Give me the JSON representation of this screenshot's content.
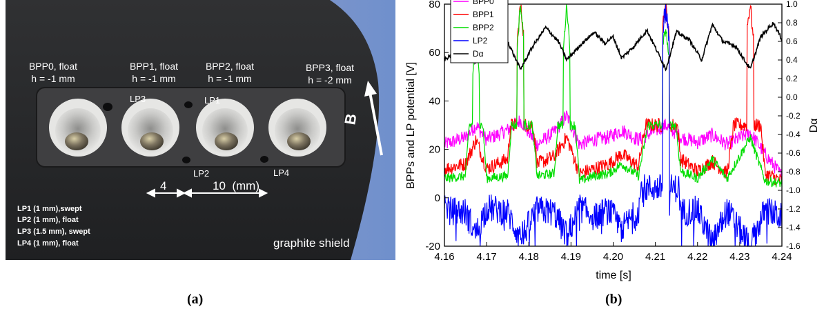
{
  "panel_a": {
    "caption": "(a)",
    "pin_labels": [
      {
        "name": "BPP0, float",
        "h": "h = -1 mm"
      },
      {
        "name": "BPP1, float",
        "h": "h = -1 mm"
      },
      {
        "name": "BPP2, float",
        "h": "h = -1 mm"
      },
      {
        "name": "BPP3, float",
        "h": "h = -2 mm"
      }
    ],
    "lp_labels": [
      "LP3",
      "LP1",
      "LP2",
      "LP4"
    ],
    "field_label": "B",
    "dim_small": "4",
    "dim_large": "10  (mm)",
    "legend_lines": [
      "LP1 (1 mm),swept",
      "LP2 (1 mm), float",
      "LP3 (1.5 mm), swept",
      "LP4 (1 mm), float"
    ],
    "shield_label": "graphite shield",
    "colors": {
      "shield": "#2b2b2d",
      "sky": "#7a92c4",
      "plate": "#3a3a3c",
      "cup": "#d8d8d6"
    }
  },
  "panel_b": {
    "caption": "(b)"
  },
  "chart_data": {
    "type": "line",
    "xlabel": "time [s]",
    "ylabel": "BPPs and LP potential [V]",
    "y2label": "Dα",
    "xlim": [
      4.16,
      4.24
    ],
    "ylim": [
      -20,
      80
    ],
    "y2lim": [
      -1.6,
      1.0
    ],
    "x_ticks": [
      "4.16",
      "4.17",
      "4.18",
      "4.19",
      "4.20",
      "4.21",
      "4.22",
      "4.23",
      "4.24"
    ],
    "y_ticks": [
      "-20",
      "0",
      "20",
      "40",
      "60",
      "80"
    ],
    "y2_ticks": [
      "-1.6",
      "-1.4",
      "-1.2",
      "-1.0",
      "-0.8",
      "-0.6",
      "-0.4",
      "-0.2",
      "0.0",
      "0.2",
      "0.4",
      "0.6",
      "0.8",
      "1.0"
    ],
    "legend_position": "top-left",
    "grid": false,
    "elm_times": [
      4.1675,
      4.178,
      4.189,
      4.1955,
      4.202,
      4.2125,
      4.2235,
      4.2325
    ],
    "series": [
      {
        "name": "BPP0",
        "color": "#ff00ff",
        "axis": "left",
        "x": [
          4.16,
          4.165,
          4.1675,
          4.17,
          4.175,
          4.178,
          4.182,
          4.186,
          4.189,
          4.192,
          4.1955,
          4.199,
          4.202,
          4.206,
          4.2125,
          4.216,
          4.22,
          4.2235,
          4.227,
          4.2325,
          4.236,
          4.24
        ],
        "y": [
          22,
          25,
          30,
          24,
          28,
          32,
          22,
          27,
          34,
          22,
          24,
          25,
          28,
          24,
          30,
          25,
          23,
          26,
          22,
          27,
          18,
          9
        ]
      },
      {
        "name": "BPP1",
        "color": "#ff0000",
        "axis": "left",
        "x": [
          4.16,
          4.165,
          4.1675,
          4.17,
          4.175,
          4.178,
          4.182,
          4.186,
          4.189,
          4.192,
          4.1955,
          4.199,
          4.202,
          4.206,
          4.2125,
          4.216,
          4.22,
          4.2235,
          4.227,
          4.2325,
          4.236,
          4.24
        ],
        "y": [
          12,
          14,
          24,
          12,
          16,
          80,
          14,
          17,
          25,
          10,
          12,
          14,
          18,
          13,
          80,
          16,
          11,
          15,
          10,
          80,
          10,
          7
        ]
      },
      {
        "name": "BPP2",
        "color": "#00dd00",
        "axis": "left",
        "x": [
          4.16,
          4.165,
          4.1675,
          4.17,
          4.175,
          4.178,
          4.182,
          4.186,
          4.189,
          4.192,
          4.1955,
          4.199,
          4.202,
          4.206,
          4.2125,
          4.216,
          4.22,
          4.2235,
          4.227,
          4.2325,
          4.236,
          4.24
        ],
        "y": [
          8,
          9,
          70,
          8,
          9,
          80,
          9,
          10,
          80,
          7,
          9,
          10,
          14,
          9,
          70,
          11,
          8,
          16,
          8,
          25,
          7,
          6
        ]
      },
      {
        "name": "LP2",
        "color": "#0000ff",
        "axis": "left",
        "x": [
          4.16,
          4.165,
          4.1675,
          4.17,
          4.175,
          4.178,
          4.182,
          4.186,
          4.189,
          4.192,
          4.1955,
          4.199,
          4.202,
          4.206,
          4.2125,
          4.216,
          4.22,
          4.2235,
          4.227,
          4.2325,
          4.236,
          4.24
        ],
        "y": [
          -5,
          -6,
          -15,
          -4,
          -6,
          -17,
          -5,
          -6,
          -16,
          -4,
          -8,
          -5,
          -13,
          -5,
          80,
          -6,
          -5,
          -19,
          -5,
          -20,
          -5,
          -8
        ]
      },
      {
        "name": "Dα",
        "color": "#000000",
        "axis": "right",
        "x": [
          4.16,
          4.163,
          4.1675,
          4.17,
          4.174,
          4.178,
          4.181,
          4.184,
          4.187,
          4.189,
          4.192,
          4.1955,
          4.198,
          4.2,
          4.202,
          4.205,
          4.208,
          4.2125,
          4.215,
          4.218,
          4.221,
          4.2235,
          4.226,
          4.229,
          4.2325,
          4.235,
          4.238,
          4.24
        ],
        "y": [
          0.4,
          0.5,
          0.38,
          0.55,
          0.7,
          0.3,
          0.55,
          0.75,
          0.6,
          0.4,
          0.55,
          0.7,
          0.58,
          0.65,
          0.42,
          0.55,
          0.72,
          0.3,
          0.7,
          0.62,
          0.4,
          0.78,
          0.6,
          0.55,
          0.3,
          0.65,
          0.8,
          0.62
        ]
      }
    ]
  }
}
